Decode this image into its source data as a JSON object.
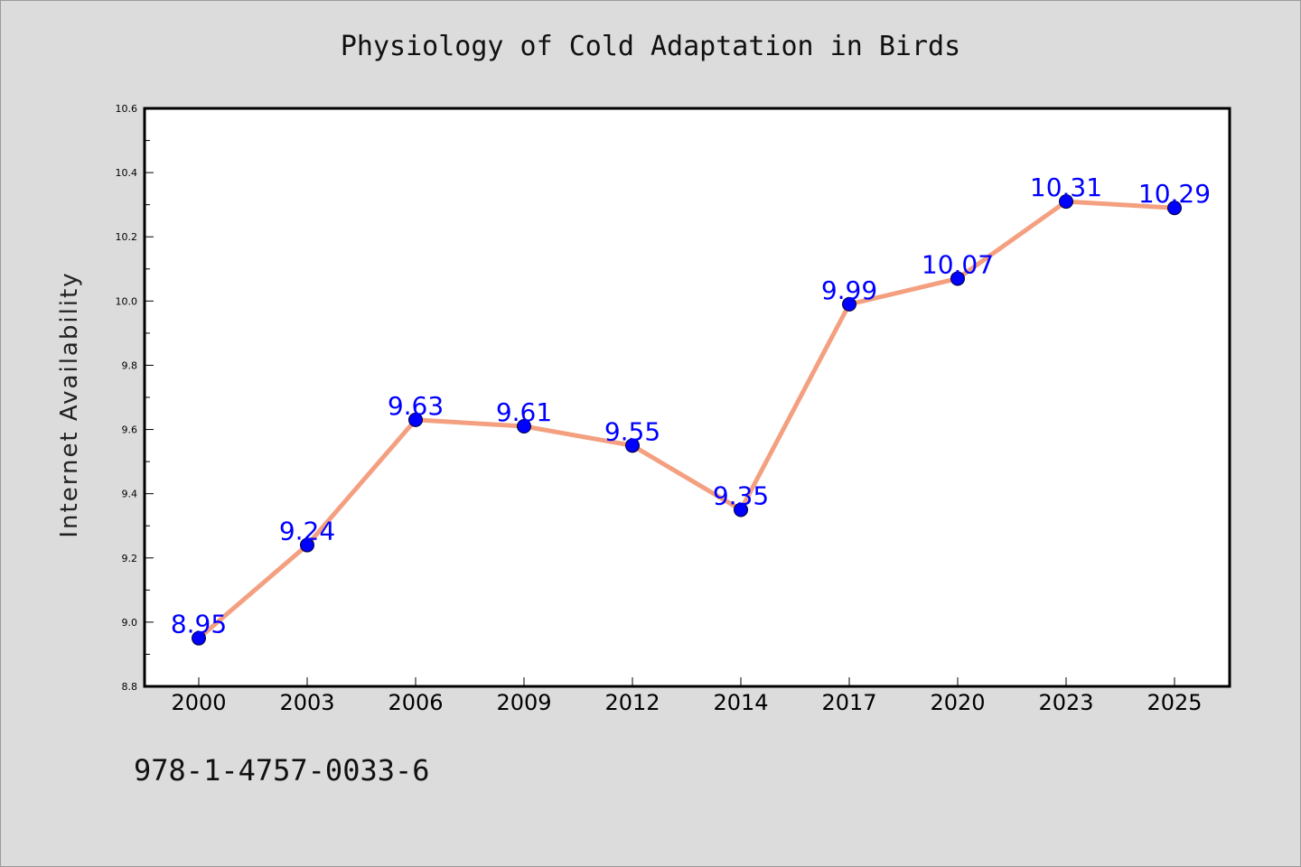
{
  "page": {
    "title": "Physiology of Cold Adaptation in Birds",
    "footer_code": "978-1-4757-0033-6"
  },
  "chart_data": {
    "type": "line",
    "title": "Physiology of Cold Adaptation in Birds",
    "xlabel": "",
    "ylabel": "Internet Availability",
    "categories": [
      "2000",
      "2003",
      "2006",
      "2009",
      "2012",
      "2014",
      "2017",
      "2020",
      "2023",
      "2025"
    ],
    "series": [
      {
        "values": [
          8.95,
          9.24,
          9.63,
          9.61,
          9.55,
          9.35,
          9.99,
          10.07,
          10.31,
          10.29
        ],
        "line_color": "#f4a080",
        "marker_color": "#0000ff"
      }
    ],
    "ylim": [
      8.8,
      10.6
    ],
    "yticks": [
      "8.8",
      "9.0",
      "9.2",
      "9.4",
      "9.6",
      "9.8",
      "10.0",
      "10.2",
      "10.4",
      "10.6"
    ],
    "data_labels": [
      "8.95",
      "9.24",
      "9.63",
      "9.61",
      "9.55",
      "9.35",
      "9.99",
      "10.07",
      "10.31",
      "10.29"
    ],
    "label_color": "#0000ff",
    "grid": false,
    "legend": "none"
  }
}
